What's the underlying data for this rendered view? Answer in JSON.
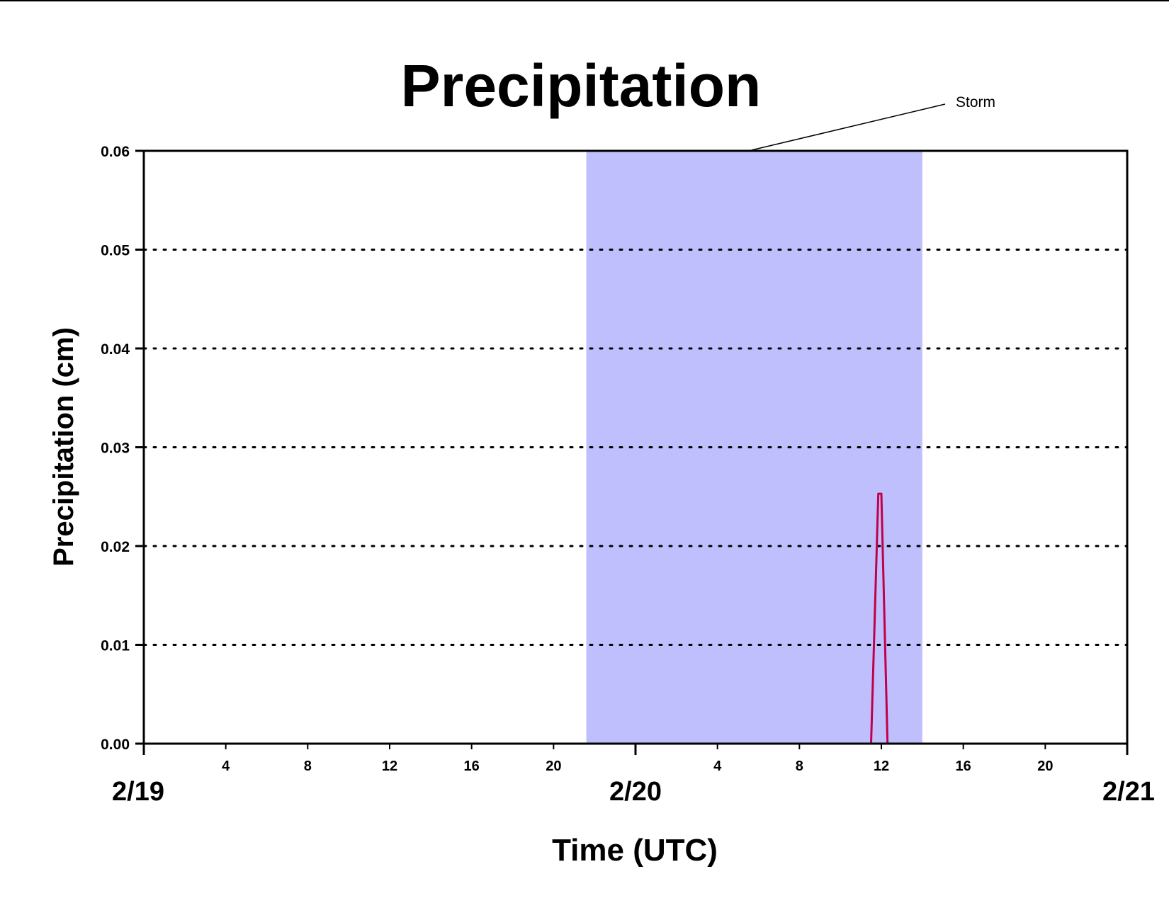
{
  "chart_data": {
    "type": "line",
    "title": "Precipitation",
    "xlabel": "Time (UTC)",
    "ylabel": "Precipitation (cm)",
    "xlim_hours": [
      0,
      48
    ],
    "ylim": [
      0,
      0.06
    ],
    "yticks": [
      0.0,
      0.01,
      0.02,
      0.03,
      0.04,
      0.05,
      0.06
    ],
    "ytick_labels": [
      "0.00",
      "0.01",
      "0.02",
      "0.03",
      "0.04",
      "0.05",
      "0.06"
    ],
    "yticks_gridlines": [
      0.01,
      0.02,
      0.03,
      0.04,
      0.05
    ],
    "grid": "horizontal-dotted",
    "hour_ticks": [
      {
        "hour": 4,
        "label": "4"
      },
      {
        "hour": 8,
        "label": "8"
      },
      {
        "hour": 12,
        "label": "12"
      },
      {
        "hour": 16,
        "label": "16"
      },
      {
        "hour": 20,
        "label": "20"
      },
      {
        "hour": 28,
        "label": "4"
      },
      {
        "hour": 32,
        "label": "8"
      },
      {
        "hour": 36,
        "label": "12"
      },
      {
        "hour": 40,
        "label": "16"
      },
      {
        "hour": 44,
        "label": "20"
      }
    ],
    "day_ticks": [
      {
        "hour": 0,
        "label": "2/19"
      },
      {
        "hour": 24,
        "label": "2/20"
      },
      {
        "hour": 48,
        "label": "2/21"
      }
    ],
    "shaded_region": {
      "start_hour": 21.6,
      "end_hour": 38.0,
      "color": "#bfbffe",
      "label": "Storm"
    },
    "series": [
      {
        "color": "#c0004a",
        "x_hours": [
          0,
          35.5,
          35.85,
          36.0,
          36.3,
          48
        ],
        "y": [
          0.0,
          0.0,
          0.0253,
          0.0253,
          0.0,
          0.0
        ]
      }
    ]
  }
}
